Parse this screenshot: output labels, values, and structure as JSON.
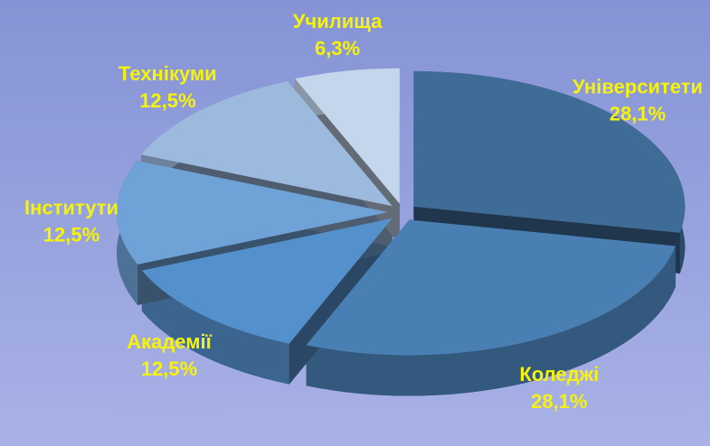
{
  "chart_data": {
    "type": "pie3d",
    "categories": [
      "Університети",
      "Коледжі",
      "Академії",
      "Інститути",
      "Технікуми",
      "Училища"
    ],
    "values": [
      28.1,
      28.1,
      12.5,
      12.5,
      12.5,
      6.3
    ],
    "value_labels": [
      "28,1%",
      "28,1%",
      "12,5%",
      "12,5%",
      "12,5%",
      "6,3%"
    ],
    "colors": [
      "#3f6b97",
      "#4a7fb4",
      "#5490cc",
      "#6fa3d8",
      "#9cb9de",
      "#c4d6ec"
    ],
    "label_color": "#f7f20c"
  }
}
